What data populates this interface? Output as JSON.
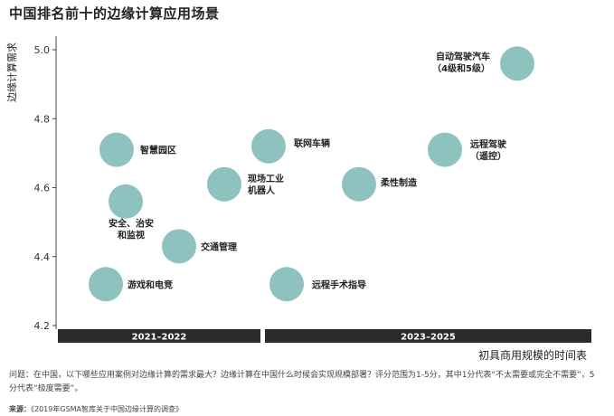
{
  "chart_data": {
    "type": "scatter",
    "title": "中国排名前十的边缘计算应用场景",
    "ylabel": "边缘计算需求",
    "xlabel": "初具商用规模的时间表",
    "ylim": [
      4.2,
      5.05
    ],
    "yticks": [
      "5.0",
      "4.8",
      "4.6",
      "4.4",
      "4.2"
    ],
    "periods": [
      "2021–2022",
      "2023–2025"
    ],
    "points": [
      {
        "label": "自动驾驶汽车\n（4级和5级）",
        "period": 1,
        "y": 4.96
      },
      {
        "label": "智慧园区",
        "period": 0,
        "y": 4.71
      },
      {
        "label": "联网车辆",
        "period": 0,
        "y": 4.72
      },
      {
        "label": "远程驾驶\n（遥控）",
        "period": 1,
        "y": 4.71
      },
      {
        "label": "现场工业\n机器人",
        "period": 0,
        "y": 4.61
      },
      {
        "label": "柔性制造",
        "period": 1,
        "y": 4.61
      },
      {
        "label": "安全、治安\n和监视",
        "period": 0,
        "y": 4.56
      },
      {
        "label": "交通管理",
        "period": 0,
        "y": 4.43
      },
      {
        "label": "游戏和电竞",
        "period": 0,
        "y": 4.32
      },
      {
        "label": "远程手术指导",
        "period": 0,
        "y": 4.32
      }
    ],
    "colors": {
      "bubble": "#8ec2bf",
      "band": "#2b2b2b",
      "axis": "#444444"
    }
  },
  "footer": {
    "question": "问题：在中国，以下哪些应用案例对边缘计算的需求最大？边缘计算在中国什么时候会实现规模部署？评分范围为1-5分，其中1分代表“不太需要或完全不需要”，5分代表“极度需要”。",
    "source_label": "来源：",
    "source_text": "《2019年GSMA智库关于中国边缘计算的调查》"
  }
}
